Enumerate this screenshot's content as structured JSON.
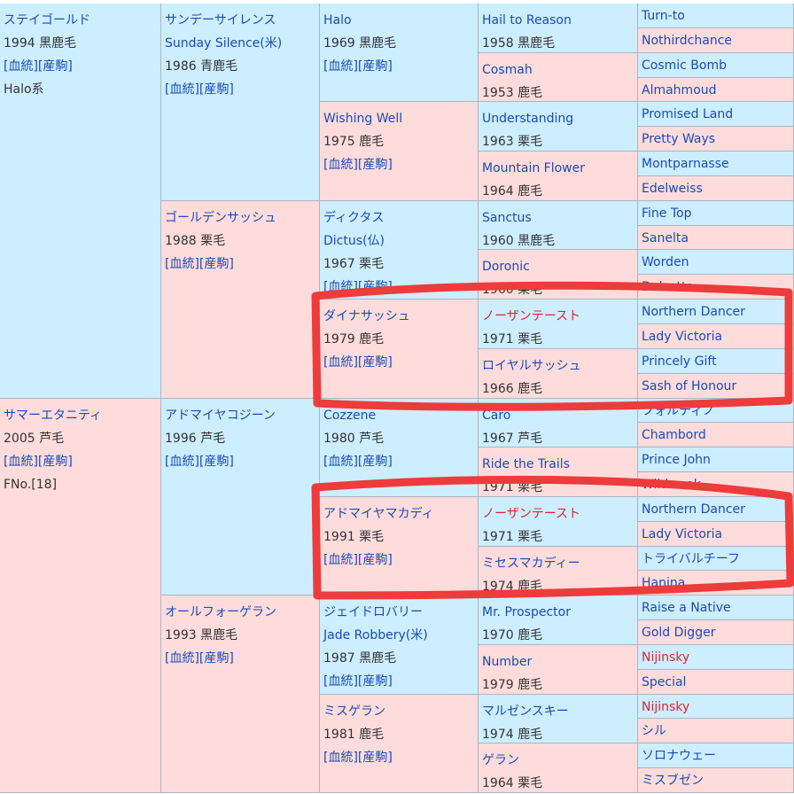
{
  "colors": {
    "male": "#cdeeff",
    "female": "#ffdcdc",
    "link": "#1a4bb5",
    "red_name": "#e0252b",
    "annotation": "#ee3b3b"
  },
  "links_text": "[血統][産駒]",
  "pedigree": [
    {
      "name": "ステイゴールド",
      "info": "1994 黒鹿毛",
      "links": true,
      "extra": "Halo系",
      "sex": "m"
    },
    {
      "name": "サマーエタニティ",
      "info": "2005 芦毛",
      "links": true,
      "extra": "FNo.[18]",
      "sex": "f"
    },
    {
      "name": "サンデーサイレンス",
      "alt": "Sunday Silence(米)",
      "info": "1986 青鹿毛",
      "links": true,
      "sex": "m"
    },
    {
      "name": "ゴールデンサッシュ",
      "info": "1988 栗毛",
      "links": true,
      "sex": "f"
    },
    {
      "name": "アドマイヤコジーン",
      "info": "1996 芦毛",
      "links": true,
      "sex": "m"
    },
    {
      "name": "オールフォーゲラン",
      "info": "1993 黒鹿毛",
      "links": true,
      "sex": "f"
    },
    {
      "name": "Halo",
      "info": "1969 黒鹿毛",
      "links": true,
      "sex": "m"
    },
    {
      "name": "Wishing Well",
      "info": "1975 鹿毛",
      "links": true,
      "sex": "f"
    },
    {
      "name": "ディクタス",
      "alt": "Dictus(仏)",
      "info": "1967 栗毛",
      "links": true,
      "sex": "m"
    },
    {
      "name": "ダイナサッシュ",
      "info": "1979 鹿毛",
      "links": true,
      "sex": "f"
    },
    {
      "name": "Cozzene",
      "info": "1980 芦毛",
      "links": true,
      "sex": "m"
    },
    {
      "name": "アドマイヤマカディ",
      "info": "1991 栗毛",
      "links": true,
      "sex": "f"
    },
    {
      "name": "ジェイドロバリー",
      "alt": "Jade Robbery(米)",
      "info": "1987 黒鹿毛",
      "links": true,
      "sex": "m"
    },
    {
      "name": "ミスゲラン",
      "info": "1981 鹿毛",
      "links": true,
      "sex": "f"
    },
    {
      "name": "Hail to Reason",
      "info": "1958 黒鹿毛",
      "sex": "m"
    },
    {
      "name": "Cosmah",
      "info": "1953 鹿毛",
      "sex": "f"
    },
    {
      "name": "Understanding",
      "info": "1963 栗毛",
      "sex": "m"
    },
    {
      "name": "Mountain Flower",
      "info": "1964 鹿毛",
      "sex": "f"
    },
    {
      "name": "Sanctus",
      "info": "1960 黒鹿毛",
      "sex": "m"
    },
    {
      "name": "Doronic",
      "info": "1960 栗毛",
      "sex": "f"
    },
    {
      "name": "ノーザンテースト",
      "info": "1971 栗毛",
      "sex": "m",
      "red": true
    },
    {
      "name": "ロイヤルサッシュ",
      "info": "1966 鹿毛",
      "sex": "f"
    },
    {
      "name": "Caro",
      "info": "1967 芦毛",
      "sex": "m"
    },
    {
      "name": "Ride the Trails",
      "info": "1971 栗毛",
      "sex": "f"
    },
    {
      "name": "ノーザンテースト",
      "info": "1971 栗毛",
      "sex": "m",
      "red": true
    },
    {
      "name": "ミセスマカディー",
      "info": "1974 鹿毛",
      "sex": "f"
    },
    {
      "name": "Mr. Prospector",
      "info": "1970 鹿毛",
      "sex": "m"
    },
    {
      "name": "Number",
      "info": "1979 鹿毛",
      "sex": "f"
    },
    {
      "name": "マルゼンスキー",
      "info": "1974 鹿毛",
      "sex": "m"
    },
    {
      "name": "ゲラン",
      "info": "1964 栗毛",
      "sex": "f"
    },
    {
      "name": "Turn-to",
      "sex": "m"
    },
    {
      "name": "Nothirdchance",
      "sex": "f"
    },
    {
      "name": "Cosmic Bomb",
      "sex": "m"
    },
    {
      "name": "Almahmoud",
      "sex": "f"
    },
    {
      "name": "Promised Land",
      "sex": "m"
    },
    {
      "name": "Pretty Ways",
      "sex": "f"
    },
    {
      "name": "Montparnasse",
      "sex": "m"
    },
    {
      "name": "Edelweiss",
      "sex": "f"
    },
    {
      "name": "Fine Top",
      "sex": "m"
    },
    {
      "name": "Sanelta",
      "sex": "f"
    },
    {
      "name": "Worden",
      "sex": "m"
    },
    {
      "name": "Dulzetta",
      "sex": "f"
    },
    {
      "name": "Northern Dancer",
      "sex": "m"
    },
    {
      "name": "Lady Victoria",
      "sex": "f"
    },
    {
      "name": "Princely Gift",
      "sex": "m"
    },
    {
      "name": "Sash of Honour",
      "sex": "f"
    },
    {
      "name": "フォルティノ",
      "sex": "m"
    },
    {
      "name": "Chambord",
      "sex": "f"
    },
    {
      "name": "Prince John",
      "sex": "m"
    },
    {
      "name": "Wildwook",
      "sex": "f"
    },
    {
      "name": "Northern Dancer",
      "sex": "m"
    },
    {
      "name": "Lady Victoria",
      "sex": "f"
    },
    {
      "name": "トライバルチーフ",
      "sex": "m"
    },
    {
      "name": "Hanina",
      "sex": "f"
    },
    {
      "name": "Raise a Native",
      "sex": "m"
    },
    {
      "name": "Gold Digger",
      "sex": "f"
    },
    {
      "name": "Nijinsky",
      "sex": "m",
      "red": true
    },
    {
      "name": "Special",
      "sex": "f"
    },
    {
      "name": "Nijinsky",
      "sex": "m",
      "red": true
    },
    {
      "name": "シル",
      "sex": "f"
    },
    {
      "name": "ソロナウェー",
      "sex": "m"
    },
    {
      "name": "ミスブゼン",
      "sex": "f"
    }
  ]
}
